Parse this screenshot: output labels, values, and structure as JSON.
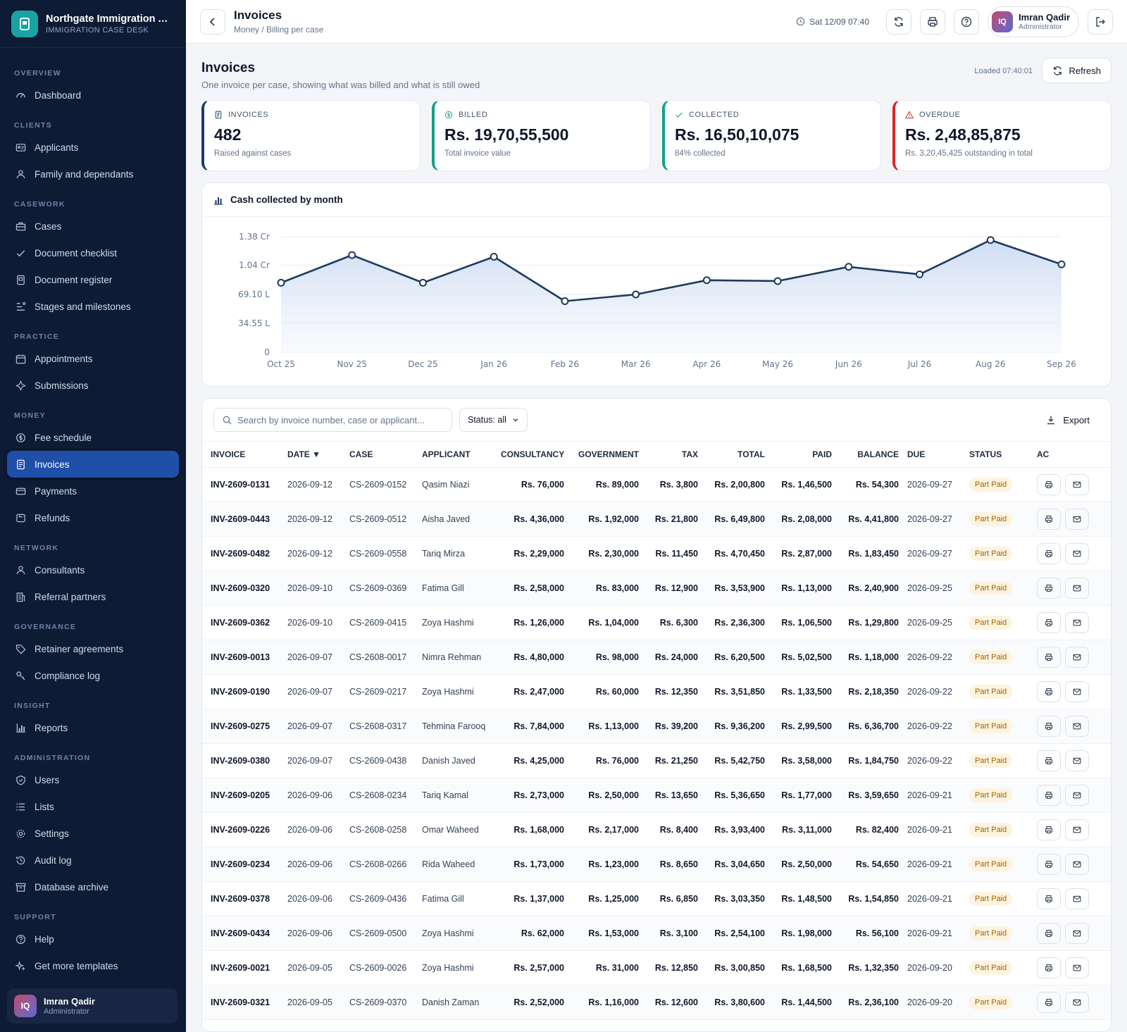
{
  "app": {
    "title": "Northgate Immigration A...",
    "subtitle": "IMMIGRATION CASE DESK"
  },
  "sidebar": {
    "sections": [
      {
        "title": "OVERVIEW",
        "items": [
          {
            "label": "Dashboard",
            "icon": "gauge-icon"
          }
        ]
      },
      {
        "title": "CLIENTS",
        "items": [
          {
            "label": "Applicants",
            "icon": "id-card-icon"
          },
          {
            "label": "Family and dependants",
            "icon": "user-icon"
          }
        ]
      },
      {
        "title": "CASEWORK",
        "items": [
          {
            "label": "Cases",
            "icon": "briefcase-icon"
          },
          {
            "label": "Document checklist",
            "icon": "check-icon"
          },
          {
            "label": "Document register",
            "icon": "file-icon"
          },
          {
            "label": "Stages and milestones",
            "icon": "stages-icon"
          }
        ]
      },
      {
        "title": "PRACTICE",
        "items": [
          {
            "label": "Appointments",
            "icon": "calendar-icon"
          },
          {
            "label": "Submissions",
            "icon": "send-icon"
          }
        ]
      },
      {
        "title": "MONEY",
        "items": [
          {
            "label": "Fee schedule",
            "icon": "coin-icon"
          },
          {
            "label": "Invoices",
            "icon": "invoice-icon",
            "active": true
          },
          {
            "label": "Payments",
            "icon": "card-icon"
          },
          {
            "label": "Refunds",
            "icon": "refund-icon"
          }
        ]
      },
      {
        "title": "NETWORK",
        "items": [
          {
            "label": "Consultants",
            "icon": "user-icon"
          },
          {
            "label": "Referral partners",
            "icon": "building-icon"
          }
        ]
      },
      {
        "title": "GOVERNANCE",
        "items": [
          {
            "label": "Retainer agreements",
            "icon": "tag-icon"
          },
          {
            "label": "Compliance log",
            "icon": "key-icon"
          }
        ]
      },
      {
        "title": "INSIGHT",
        "items": [
          {
            "label": "Reports",
            "icon": "bar-chart-icon"
          }
        ]
      },
      {
        "title": "ADMINISTRATION",
        "items": [
          {
            "label": "Users",
            "icon": "shield-icon"
          },
          {
            "label": "Lists",
            "icon": "list-icon"
          },
          {
            "label": "Settings",
            "icon": "gear-icon"
          },
          {
            "label": "Audit log",
            "icon": "history-icon"
          },
          {
            "label": "Database archive",
            "icon": "archive-icon"
          }
        ]
      },
      {
        "title": "SUPPORT",
        "items": [
          {
            "label": "Help",
            "icon": "help-icon"
          },
          {
            "label": "Get more templates",
            "icon": "sparkle-icon"
          }
        ]
      }
    ],
    "user": {
      "initials": "IQ",
      "name": "Imran Qadir",
      "role": "Administrator"
    }
  },
  "topbar": {
    "title": "Invoices",
    "crumb": "Money / Billing per case",
    "time": "Sat 12/09 07:40",
    "user": {
      "initials": "IQ",
      "name": "Imran Qadir",
      "role": "Administrator"
    }
  },
  "page": {
    "title": "Invoices",
    "subtitle": "One invoice per case, showing what was billed and what is still owed",
    "loaded": "Loaded 07:40:01",
    "refresh": "Refresh"
  },
  "kpis": [
    {
      "label": "INVOICES",
      "value": "482",
      "sub": "Raised against cases",
      "color": "#1e3a6e",
      "icon": "invoice-icon"
    },
    {
      "label": "BILLED",
      "value": "Rs. 19,70,55,500",
      "sub": "Total invoice value",
      "color": "#16a085",
      "icon": "coin-icon"
    },
    {
      "label": "COLLECTED",
      "value": "Rs. 16,50,10,075",
      "sub": "84% collected",
      "color": "#16a085",
      "icon": "check-icon"
    },
    {
      "label": "OVERDUE",
      "value": "Rs. 2,48,85,875",
      "sub": "Rs. 3,20,45,425 outstanding in total",
      "color": "#dc2626",
      "icon": "alert-icon"
    }
  ],
  "chart_title": "Cash collected by month",
  "chart_data": {
    "type": "area",
    "categories": [
      "Oct 25",
      "Nov 25",
      "Dec 25",
      "Jan 26",
      "Feb 26",
      "Mar 26",
      "Apr 26",
      "May 26",
      "Jun 26",
      "Jul 26",
      "Aug 26",
      "Sep 26"
    ],
    "values": [
      8300000,
      11600000,
      8300000,
      11400000,
      6100000,
      6900000,
      8600000,
      8500000,
      10200000,
      9300000,
      13400000,
      10500000
    ],
    "yticks": [
      "0",
      "34.55 L",
      "69.10 L",
      "1.04 Cr",
      "1.38 Cr"
    ],
    "ytick_values": [
      0,
      3455000,
      6910000,
      10400000,
      13800000
    ],
    "ylim": [
      0,
      13800000
    ],
    "line_color": "#1e3a5f",
    "grid": true
  },
  "table": {
    "search_placeholder": "Search by invoice number, case or applicant...",
    "status_filter": "Status: all",
    "export": "Export",
    "columns": [
      "INVOICE",
      "DATE ▼",
      "CASE",
      "APPLICANT",
      "CONSULTANCY",
      "GOVERNMENT",
      "TAX",
      "TOTAL",
      "PAID",
      "BALANCE",
      "DUE",
      "STATUS",
      "AC"
    ],
    "rows": [
      [
        "INV-2609-0131",
        "2026-09-12",
        "CS-2609-0152",
        "Qasim Niazi",
        "Rs. 76,000",
        "Rs. 89,000",
        "Rs. 3,800",
        "Rs. 2,00,800",
        "Rs. 1,46,500",
        "Rs. 54,300",
        "2026-09-27",
        "Part Paid"
      ],
      [
        "INV-2609-0443",
        "2026-09-12",
        "CS-2609-0512",
        "Aisha Javed",
        "Rs. 4,36,000",
        "Rs. 1,92,000",
        "Rs. 21,800",
        "Rs. 6,49,800",
        "Rs. 2,08,000",
        "Rs. 4,41,800",
        "2026-09-27",
        "Part Paid"
      ],
      [
        "INV-2609-0482",
        "2026-09-12",
        "CS-2609-0558",
        "Tariq Mirza",
        "Rs. 2,29,000",
        "Rs. 2,30,000",
        "Rs. 11,450",
        "Rs. 4,70,450",
        "Rs. 2,87,000",
        "Rs. 1,83,450",
        "2026-09-27",
        "Part Paid"
      ],
      [
        "INV-2609-0320",
        "2026-09-10",
        "CS-2609-0369",
        "Fatima Gill",
        "Rs. 2,58,000",
        "Rs. 83,000",
        "Rs. 12,900",
        "Rs. 3,53,900",
        "Rs. 1,13,000",
        "Rs. 2,40,900",
        "2026-09-25",
        "Part Paid"
      ],
      [
        "INV-2609-0362",
        "2026-09-10",
        "CS-2609-0415",
        "Zoya Hashmi",
        "Rs. 1,26,000",
        "Rs. 1,04,000",
        "Rs. 6,300",
        "Rs. 2,36,300",
        "Rs. 1,06,500",
        "Rs. 1,29,800",
        "2026-09-25",
        "Part Paid"
      ],
      [
        "INV-2609-0013",
        "2026-09-07",
        "CS-2608-0017",
        "Nimra Rehman",
        "Rs. 4,80,000",
        "Rs. 98,000",
        "Rs. 24,000",
        "Rs. 6,20,500",
        "Rs. 5,02,500",
        "Rs. 1,18,000",
        "2026-09-22",
        "Part Paid"
      ],
      [
        "INV-2609-0190",
        "2026-09-07",
        "CS-2609-0217",
        "Zoya Hashmi",
        "Rs. 2,47,000",
        "Rs. 60,000",
        "Rs. 12,350",
        "Rs. 3,51,850",
        "Rs. 1,33,500",
        "Rs. 2,18,350",
        "2026-09-22",
        "Part Paid"
      ],
      [
        "INV-2609-0275",
        "2026-09-07",
        "CS-2608-0317",
        "Tehmina Farooq",
        "Rs. 7,84,000",
        "Rs. 1,13,000",
        "Rs. 39,200",
        "Rs. 9,36,200",
        "Rs. 2,99,500",
        "Rs. 6,36,700",
        "2026-09-22",
        "Part Paid"
      ],
      [
        "INV-2609-0380",
        "2026-09-07",
        "CS-2609-0438",
        "Danish Javed",
        "Rs. 4,25,000",
        "Rs. 76,000",
        "Rs. 21,250",
        "Rs. 5,42,750",
        "Rs. 3,58,000",
        "Rs. 1,84,750",
        "2026-09-22",
        "Part Paid"
      ],
      [
        "INV-2609-0205",
        "2026-09-06",
        "CS-2608-0234",
        "Tariq Kamal",
        "Rs. 2,73,000",
        "Rs. 2,50,000",
        "Rs. 13,650",
        "Rs. 5,36,650",
        "Rs. 1,77,000",
        "Rs. 3,59,650",
        "2026-09-21",
        "Part Paid"
      ],
      [
        "INV-2609-0226",
        "2026-09-06",
        "CS-2608-0258",
        "Omar Waheed",
        "Rs. 1,68,000",
        "Rs. 2,17,000",
        "Rs. 8,400",
        "Rs. 3,93,400",
        "Rs. 3,11,000",
        "Rs. 82,400",
        "2026-09-21",
        "Part Paid"
      ],
      [
        "INV-2609-0234",
        "2026-09-06",
        "CS-2608-0266",
        "Rida Waheed",
        "Rs. 1,73,000",
        "Rs. 1,23,000",
        "Rs. 8,650",
        "Rs. 3,04,650",
        "Rs. 2,50,000",
        "Rs. 54,650",
        "2026-09-21",
        "Part Paid"
      ],
      [
        "INV-2609-0378",
        "2026-09-06",
        "CS-2609-0436",
        "Fatima Gill",
        "Rs. 1,37,000",
        "Rs. 1,25,000",
        "Rs. 6,850",
        "Rs. 3,03,350",
        "Rs. 1,48,500",
        "Rs. 1,54,850",
        "2026-09-21",
        "Part Paid"
      ],
      [
        "INV-2609-0434",
        "2026-09-06",
        "CS-2609-0500",
        "Zoya Hashmi",
        "Rs. 62,000",
        "Rs. 1,53,000",
        "Rs. 3,100",
        "Rs. 2,54,100",
        "Rs. 1,98,000",
        "Rs. 56,100",
        "2026-09-21",
        "Part Paid"
      ],
      [
        "INV-2609-0021",
        "2026-09-05",
        "CS-2609-0026",
        "Zoya Hashmi",
        "Rs. 2,57,000",
        "Rs. 31,000",
        "Rs. 12,850",
        "Rs. 3,00,850",
        "Rs. 1,68,500",
        "Rs. 1,32,350",
        "2026-09-20",
        "Part Paid"
      ],
      [
        "INV-2609-0321",
        "2026-09-05",
        "CS-2609-0370",
        "Danish Zaman",
        "Rs. 2,52,000",
        "Rs. 1,16,000",
        "Rs. 12,600",
        "Rs. 3,80,600",
        "Rs. 1,44,500",
        "Rs. 2,36,100",
        "2026-09-20",
        "Part Paid"
      ]
    ]
  }
}
